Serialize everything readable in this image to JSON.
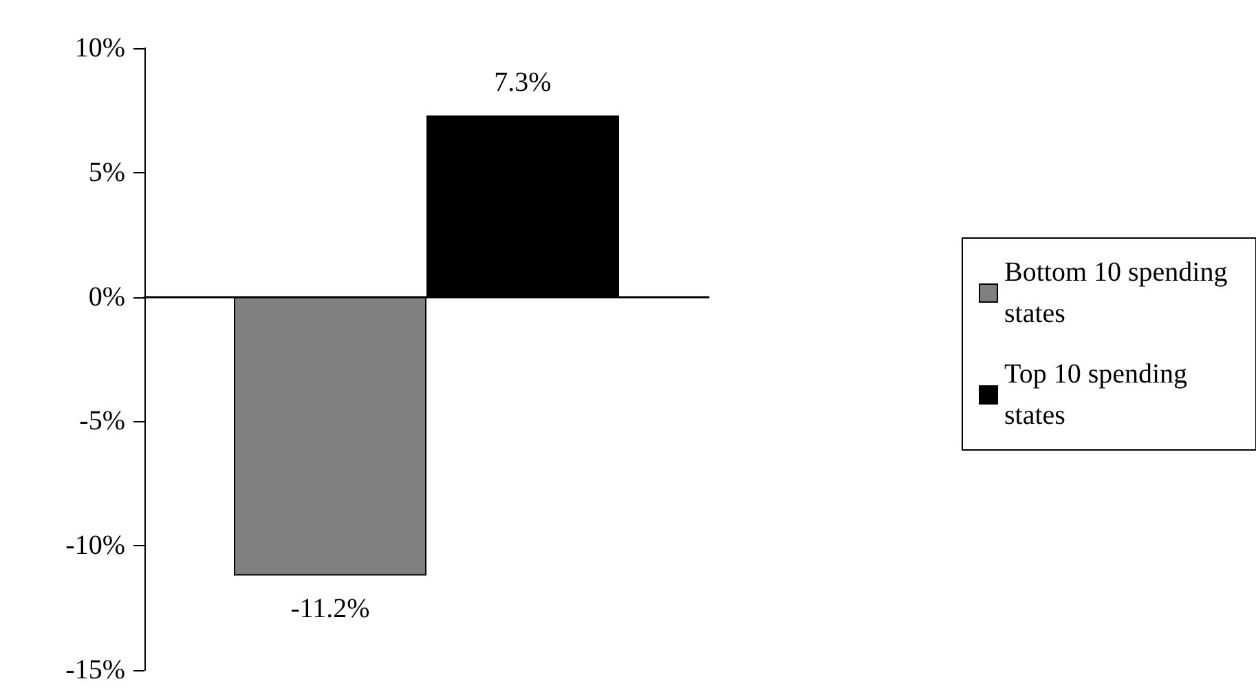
{
  "chart_data": {
    "type": "bar",
    "categories": [
      null
    ],
    "series": [
      {
        "name": "Bottom 10 spending states",
        "color": "#808080",
        "values": [
          -11.2
        ],
        "value_labels": [
          "-11.2%"
        ]
      },
      {
        "name": "Top 10 spending states",
        "color": "#000000",
        "values": [
          7.3
        ],
        "value_labels": [
          "7.3%"
        ]
      }
    ],
    "ylim": [
      -15,
      10
    ],
    "yticks": [
      {
        "value": -15,
        "label": "-15%"
      },
      {
        "value": -10,
        "label": "-10%"
      },
      {
        "value": -5,
        "label": "-5%"
      },
      {
        "value": 0,
        "label": "0%"
      },
      {
        "value": 5,
        "label": "5%"
      },
      {
        "value": 10,
        "label": "10%"
      }
    ],
    "legend": "right"
  }
}
